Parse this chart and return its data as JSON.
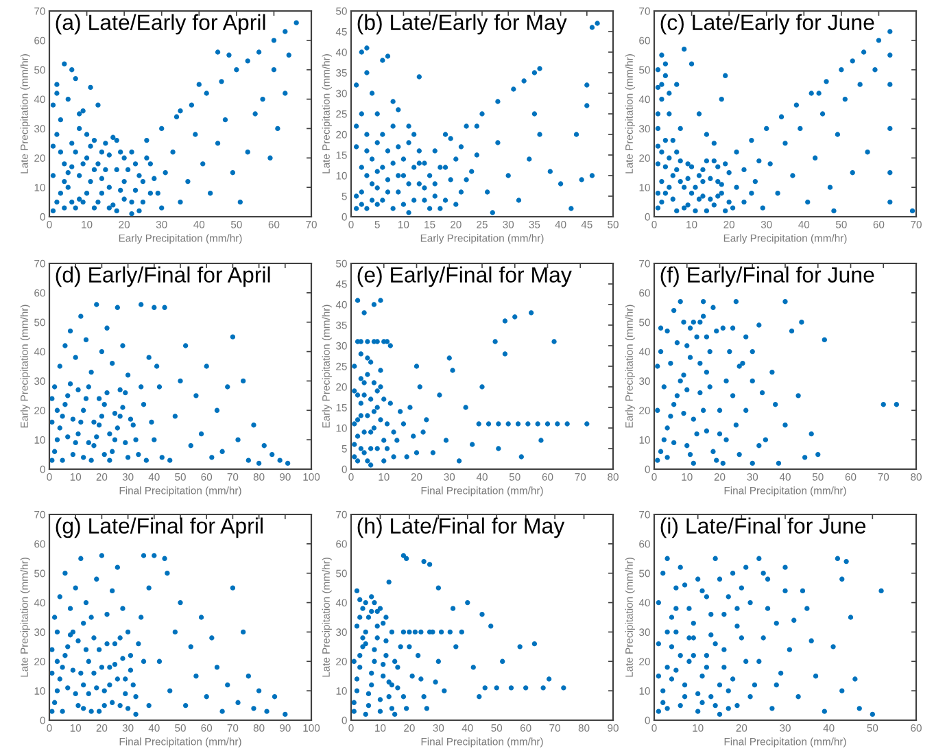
{
  "chart_data": [
    {
      "type": "scatter",
      "title": "(a) Late/Early for April",
      "xlabel": "Early Precipitation (mm/hr)",
      "ylabel": "Late Precipitation (mm/hr)",
      "xlim": [
        0,
        70
      ],
      "ylim": [
        0,
        70
      ],
      "xticks": [
        0,
        10,
        20,
        30,
        40,
        50,
        60,
        70
      ],
      "yticks": [
        0,
        10,
        20,
        30,
        40,
        50,
        60,
        70
      ],
      "marker": "circle",
      "color": "#0072bd",
      "x": [
        1,
        3,
        5,
        7,
        2,
        9,
        11,
        13,
        15,
        4,
        8,
        12,
        16,
        18,
        19,
        14,
        6,
        10,
        17,
        20,
        1,
        2,
        3,
        5,
        4,
        7,
        9,
        11,
        13,
        6,
        8,
        2,
        22,
        26,
        30,
        34,
        38,
        42,
        46,
        50,
        53,
        56,
        60,
        63,
        66,
        22,
        25,
        27,
        24,
        29,
        31,
        33,
        35,
        37,
        39,
        41,
        43,
        45,
        47,
        49,
        51,
        53,
        55,
        57,
        59,
        61,
        63,
        64,
        60,
        45,
        48,
        40,
        35,
        30,
        28,
        2,
        4,
        6,
        8,
        10,
        12,
        14,
        16,
        18,
        20,
        3,
        5,
        7,
        9,
        11,
        13,
        15,
        17,
        19,
        1,
        21,
        23,
        25,
        26,
        22,
        24,
        1,
        6,
        10,
        14,
        18,
        12,
        8,
        16,
        20,
        4,
        27,
        23
      ],
      "values": [
        2,
        8,
        15,
        22,
        28,
        5,
        12,
        18,
        25,
        12,
        30,
        3,
        10,
        16,
        22,
        8,
        5,
        20,
        4,
        12,
        38,
        42,
        33,
        40,
        52,
        47,
        36,
        44,
        38,
        50,
        35,
        45,
        22,
        26,
        30,
        34,
        38,
        42,
        46,
        50,
        53,
        56,
        60,
        63,
        66,
        5,
        12,
        18,
        2,
        8,
        15,
        22,
        5,
        12,
        28,
        18,
        8,
        25,
        33,
        15,
        5,
        22,
        35,
        40,
        20,
        30,
        42,
        55,
        50,
        56,
        55,
        45,
        36,
        3,
        13,
        5,
        18,
        25,
        14,
        8,
        26,
        13,
        21,
        2,
        6,
        22,
        10,
        3,
        18,
        24,
        5,
        16,
        27,
        9,
        14,
        16,
        9,
        5,
        20,
        1,
        14,
        24,
        17,
        28,
        22,
        26,
        16,
        6,
        3,
        20,
        3,
        8,
        18
      ]
    },
    {
      "type": "scatter",
      "title": "(b) Late/Early for May",
      "xlabel": "Early Precipitation (mm/hr)",
      "ylabel": "Late Precipitation (mm/hr)",
      "xlim": [
        0,
        50
      ],
      "ylim": [
        0,
        50
      ],
      "xticks": [
        0,
        5,
        10,
        15,
        20,
        25,
        30,
        35,
        40,
        45,
        50
      ],
      "yticks": [
        0,
        5,
        10,
        15,
        20,
        25,
        30,
        35,
        40,
        45,
        50
      ],
      "marker": "circle",
      "color": "#0072bd",
      "x": [
        1,
        2,
        3,
        4,
        5,
        1,
        2,
        6,
        7,
        8,
        9,
        10,
        11,
        12,
        13,
        3,
        5,
        9,
        14,
        15,
        2,
        3,
        7,
        6,
        13,
        1,
        4,
        8,
        5,
        9,
        3,
        11,
        10,
        13,
        16,
        19,
        22,
        25,
        28,
        31,
        33,
        35,
        36,
        46,
        47,
        16,
        18,
        20,
        22,
        24,
        26,
        28,
        30,
        32,
        34,
        36,
        38,
        40,
        42,
        43,
        45,
        44,
        46,
        45,
        35,
        27,
        24,
        18,
        21,
        1,
        2,
        3,
        4,
        5,
        6,
        7,
        8,
        9,
        10,
        11,
        12,
        13,
        14,
        15,
        16,
        17,
        18,
        19,
        20,
        1,
        3,
        6,
        8,
        2,
        4,
        7,
        11,
        14,
        17,
        21,
        23,
        12,
        5
      ],
      "values": [
        2,
        6,
        10,
        14,
        18,
        22,
        25,
        4,
        9,
        13,
        17,
        3,
        8,
        12,
        16,
        2,
        7,
        6,
        4,
        10,
        40,
        41,
        39,
        38,
        34,
        32,
        30,
        28,
        25,
        26,
        35,
        22,
        10,
        13,
        16,
        19,
        22,
        25,
        28,
        31,
        33,
        35,
        36,
        46,
        47,
        5,
        12,
        3,
        9,
        15,
        6,
        18,
        10,
        4,
        14,
        20,
        11,
        8,
        2,
        20,
        27,
        9,
        10,
        32,
        25,
        1,
        22,
        20,
        17,
        5,
        12,
        16,
        8,
        3,
        12,
        16,
        2,
        10,
        14,
        18,
        4,
        8,
        13,
        2,
        8,
        12,
        4,
        9,
        14,
        17,
        20,
        20,
        22,
        3,
        4,
        6,
        1,
        7,
        2,
        6,
        11,
        20,
        11
      ]
    },
    {
      "type": "scatter",
      "title": "(c) Late/Early for June",
      "xlabel": "Early Precipitation (mm/hr)",
      "ylabel": "Late Precipitation (mm/hr)",
      "xlim": [
        0,
        70
      ],
      "ylim": [
        0,
        70
      ],
      "xticks": [
        0,
        10,
        20,
        30,
        40,
        50,
        60,
        70
      ],
      "yticks": [
        0,
        10,
        20,
        30,
        40,
        50,
        60,
        70
      ],
      "marker": "circle",
      "color": "#0072bd",
      "x": [
        1,
        3,
        5,
        7,
        9,
        11,
        13,
        15,
        17,
        19,
        2,
        4,
        6,
        10,
        14,
        18,
        20,
        8,
        12,
        16,
        1,
        2,
        1,
        3,
        4,
        2,
        5,
        6,
        8,
        10,
        12,
        14,
        16,
        18,
        19,
        7,
        22,
        26,
        30,
        34,
        38,
        42,
        46,
        50,
        53,
        56,
        60,
        24,
        27,
        29,
        31,
        33,
        35,
        37,
        39,
        41,
        43,
        45,
        47,
        49,
        51,
        53,
        55,
        57,
        59,
        48,
        44,
        63,
        63,
        63,
        63,
        63,
        63,
        69,
        2,
        4,
        6,
        8,
        10,
        12,
        14,
        16,
        18,
        20,
        3,
        5,
        7,
        9,
        11,
        13,
        15,
        17,
        19,
        1,
        1,
        2,
        3,
        1,
        2,
        4,
        1,
        6,
        9,
        13,
        17,
        22,
        24,
        21,
        26,
        28,
        1,
        3
      ],
      "values": [
        3,
        8,
        14,
        19,
        4,
        10,
        16,
        6,
        12,
        18,
        12,
        20,
        2,
        17,
        2,
        8,
        15,
        10,
        6,
        19,
        30,
        40,
        50,
        48,
        35,
        55,
        26,
        45,
        57,
        52,
        35,
        28,
        25,
        40,
        48,
        30,
        22,
        26,
        30,
        34,
        38,
        42,
        46,
        50,
        53,
        56,
        60,
        5,
        12,
        3,
        18,
        8,
        25,
        14,
        30,
        5,
        20,
        35,
        10,
        28,
        40,
        15,
        45,
        22,
        50,
        2,
        42,
        5,
        15,
        30,
        45,
        55,
        63,
        2,
        5,
        10,
        16,
        3,
        8,
        14,
        19,
        4,
        11,
        5,
        17,
        6,
        12,
        18,
        2,
        7,
        13,
        17,
        2,
        8,
        18,
        22,
        26,
        35,
        45,
        42,
        24,
        22,
        13,
        12,
        7,
        10,
        16,
        3,
        8,
        19,
        44,
        52
      ]
    },
    {
      "type": "scatter",
      "title": "(d) Early/Final for April",
      "xlabel": "Final Precipitation (mm/hr)",
      "ylabel": "Early Precipitation (mm/hr)",
      "xlim": [
        0,
        100
      ],
      "ylim": [
        0,
        70
      ],
      "xticks": [
        0,
        10,
        20,
        30,
        40,
        50,
        60,
        70,
        80,
        90,
        100
      ],
      "yticks": [
        0,
        10,
        20,
        30,
        40,
        50,
        60,
        70
      ],
      "marker": "circle",
      "color": "#0072bd",
      "x": [
        1,
        3,
        5,
        7,
        9,
        11,
        13,
        15,
        17,
        19,
        21,
        23,
        25,
        27,
        29,
        2,
        4,
        6,
        8,
        10,
        12,
        14,
        16,
        18,
        20,
        22,
        24,
        26,
        28,
        30,
        32,
        34,
        36,
        38,
        40,
        42,
        44,
        46,
        48,
        50,
        52,
        54,
        56,
        58,
        60,
        62,
        64,
        66,
        68,
        70,
        72,
        74,
        76,
        78,
        80,
        82,
        85,
        88,
        91,
        35,
        40,
        2,
        4,
        6,
        8,
        10,
        12,
        14,
        16,
        18,
        20,
        22,
        24,
        26,
        28,
        30,
        3,
        5,
        7,
        9,
        11,
        13,
        15,
        17,
        19,
        21,
        23,
        25,
        27,
        29,
        31,
        1,
        1,
        33,
        35,
        37,
        39,
        41,
        43
      ],
      "values": [
        3,
        10,
        18,
        25,
        5,
        12,
        20,
        28,
        8,
        15,
        22,
        3,
        10,
        18,
        26,
        28,
        35,
        42,
        47,
        38,
        52,
        44,
        33,
        56,
        40,
        48,
        36,
        55,
        42,
        32,
        15,
        5,
        22,
        38,
        10,
        28,
        55,
        3,
        18,
        30,
        42,
        8,
        25,
        12,
        35,
        4,
        20,
        6,
        28,
        45,
        10,
        30,
        3,
        15,
        2,
        8,
        5,
        3,
        2,
        56,
        55,
        6,
        14,
        22,
        29,
        9,
        16,
        24,
        3,
        11,
        18,
        26,
        6,
        14,
        21,
        4,
        20,
        3,
        11,
        17,
        27,
        4,
        9,
        16,
        24,
        5,
        12,
        19,
        27,
        9,
        17,
        16,
        24,
        10,
        28,
        3,
        16,
        35,
        4
      ]
    },
    {
      "type": "scatter",
      "title": "(e) Early/Final for May",
      "xlabel": "Final Precipitation (mm/hr)",
      "ylabel": "Early Precipitation (mm/hr)",
      "xlim": [
        0,
        80
      ],
      "ylim": [
        0,
        50
      ],
      "xticks": [
        0,
        10,
        20,
        30,
        40,
        50,
        60,
        70,
        80
      ],
      "yticks": [
        0,
        5,
        10,
        15,
        20,
        25,
        30,
        35,
        40,
        45,
        50
      ],
      "marker": "circle",
      "color": "#0072bd",
      "x": [
        1,
        2,
        3,
        4,
        5,
        6,
        7,
        8,
        9,
        10,
        1,
        3,
        2,
        5,
        8,
        10,
        12,
        4,
        7,
        2,
        9,
        11,
        13,
        15,
        17,
        19,
        21,
        23,
        25,
        27,
        29,
        31,
        33,
        35,
        37,
        39,
        42,
        45,
        48,
        51,
        54,
        57,
        60,
        63,
        66,
        72,
        47,
        50,
        55,
        44,
        47,
        62,
        40,
        45,
        52,
        58,
        30,
        20,
        1,
        2,
        3,
        4,
        5,
        6,
        7,
        8,
        9,
        10,
        1,
        2,
        3,
        4,
        5,
        6,
        7,
        8,
        9,
        10,
        1,
        2,
        3,
        5,
        6,
        11,
        12,
        13,
        14,
        16,
        18,
        20,
        22,
        3,
        7,
        11,
        6,
        4
      ],
      "values": [
        3,
        8,
        13,
        18,
        23,
        5,
        10,
        15,
        20,
        2,
        25,
        28,
        31,
        31,
        31,
        31,
        30,
        38,
        40,
        41,
        41,
        5,
        9,
        14,
        3,
        8,
        20,
        12,
        4,
        18,
        7,
        24,
        2,
        15,
        6,
        11,
        11,
        11,
        11,
        11,
        11,
        11,
        11,
        11,
        11,
        11,
        36,
        37,
        38,
        31,
        28,
        31,
        20,
        5,
        3,
        7,
        27,
        25,
        6,
        12,
        16,
        21,
        2,
        9,
        14,
        19,
        24,
        7,
        11,
        18,
        22,
        4,
        13,
        17,
        21,
        5,
        12,
        17,
        19,
        2,
        5,
        27,
        26,
        11,
        16,
        3,
        7,
        11,
        15,
        4,
        9,
        31,
        31,
        31,
        1,
        9
      ]
    },
    {
      "type": "scatter",
      "title": "(f) Early/Final for June",
      "xlabel": "Final Precipitation (mm/hr)",
      "ylabel": "Early Precipitation (mm/hr)",
      "xlim": [
        0,
        80
      ],
      "ylim": [
        0,
        70
      ],
      "xticks": [
        0,
        10,
        20,
        30,
        40,
        50,
        60,
        70,
        80
      ],
      "yticks": [
        0,
        10,
        20,
        30,
        40,
        50,
        60,
        70
      ],
      "marker": "circle",
      "color": "#0072bd",
      "x": [
        1,
        3,
        5,
        7,
        9,
        11,
        13,
        15,
        17,
        19,
        2,
        4,
        6,
        8,
        10,
        12,
        14,
        16,
        18,
        20,
        22,
        24,
        26,
        28,
        30,
        32,
        34,
        36,
        38,
        40,
        42,
        44,
        46,
        48,
        50,
        52,
        70,
        74,
        45,
        40,
        25,
        15,
        33,
        27,
        21,
        11,
        30,
        37,
        2,
        4,
        6,
        8,
        10,
        12,
        14,
        16,
        18,
        20,
        3,
        5,
        7,
        9,
        11,
        13,
        15,
        17,
        19,
        1,
        1,
        2,
        22,
        24,
        26,
        28,
        30,
        32,
        23,
        21,
        25,
        12,
        4,
        9,
        16,
        6,
        10,
        14
      ],
      "values": [
        3,
        10,
        18,
        25,
        32,
        5,
        12,
        20,
        28,
        3,
        40,
        47,
        54,
        57,
        42,
        50,
        36,
        45,
        55,
        12,
        30,
        48,
        5,
        20,
        40,
        49,
        10,
        33,
        2,
        15,
        47,
        25,
        4,
        12,
        5,
        44,
        22,
        22,
        50,
        57,
        57,
        57,
        26,
        36,
        48,
        48,
        2,
        22,
        6,
        14,
        22,
        30,
        8,
        17,
        26,
        33,
        6,
        20,
        28,
        36,
        43,
        50,
        38,
        45,
        52,
        40,
        47,
        20,
        35,
        48,
        10,
        25,
        35,
        45,
        30,
        8,
        40,
        2,
        15,
        2,
        4,
        19,
        13,
        9,
        27,
        50
      ]
    },
    {
      "type": "scatter",
      "title": "(g) Late/Final for April",
      "xlabel": "Final Precipitation (mm/hr)",
      "ylabel": "Late Precipitation (mm/hr)",
      "xlim": [
        0,
        100
      ],
      "ylim": [
        0,
        70
      ],
      "xticks": [
        0,
        10,
        20,
        30,
        40,
        50,
        60,
        70,
        80,
        90,
        100
      ],
      "yticks": [
        0,
        10,
        20,
        30,
        40,
        50,
        60,
        70
      ],
      "marker": "circle",
      "color": "#0072bd",
      "x": [
        1,
        3,
        5,
        7,
        9,
        11,
        13,
        15,
        17,
        19,
        21,
        23,
        25,
        27,
        29,
        31,
        33,
        2,
        4,
        6,
        8,
        10,
        12,
        14,
        16,
        18,
        20,
        22,
        24,
        26,
        28,
        30,
        35,
        38,
        40,
        42,
        44,
        46,
        48,
        50,
        52,
        54,
        56,
        58,
        60,
        62,
        64,
        66,
        68,
        70,
        72,
        74,
        76,
        78,
        80,
        83,
        86,
        90,
        36,
        45,
        33,
        2,
        4,
        6,
        8,
        10,
        12,
        14,
        16,
        18,
        20,
        22,
        24,
        26,
        28,
        30,
        32,
        34,
        3,
        5,
        7,
        9,
        11,
        13,
        15,
        17,
        19,
        21,
        23,
        25,
        27,
        29,
        31,
        1,
        1,
        36,
        38,
        3,
        13
      ],
      "values": [
        3,
        10,
        18,
        25,
        30,
        5,
        12,
        20,
        28,
        3,
        10,
        18,
        26,
        5,
        14,
        22,
        8,
        35,
        42,
        50,
        38,
        45,
        55,
        40,
        35,
        48,
        56,
        36,
        44,
        52,
        38,
        30,
        35,
        45,
        56,
        20,
        55,
        10,
        30,
        40,
        5,
        25,
        15,
        35,
        8,
        28,
        18,
        3,
        12,
        45,
        6,
        30,
        15,
        4,
        10,
        3,
        8,
        2,
        56,
        50,
        2,
        6,
        14,
        22,
        29,
        9,
        16,
        24,
        3,
        11,
        18,
        26,
        6,
        14,
        21,
        4,
        12,
        26,
        20,
        3,
        11,
        17,
        27,
        4,
        9,
        16,
        24,
        5,
        12,
        19,
        28,
        9,
        17,
        16,
        24,
        20,
        5,
        30,
        33
      ]
    },
    {
      "type": "scatter",
      "title": "(h) Late/Final for May",
      "xlabel": "Final Precipitation (mm/hr)",
      "ylabel": "Late Precipitation (mm/hr)",
      "xlim": [
        0,
        90
      ],
      "ylim": [
        0,
        70
      ],
      "xticks": [
        0,
        10,
        20,
        30,
        40,
        50,
        60,
        70,
        80,
        90
      ],
      "yticks": [
        0,
        10,
        20,
        30,
        40,
        50,
        60,
        70
      ],
      "marker": "circle",
      "color": "#0072bd",
      "x": [
        1,
        2,
        3,
        4,
        5,
        6,
        7,
        8,
        9,
        10,
        11,
        12,
        13,
        14,
        15,
        3,
        5,
        7,
        9,
        11,
        2,
        13,
        18,
        19,
        25,
        27,
        16,
        18,
        20,
        22,
        24,
        26,
        28,
        30,
        32,
        34,
        36,
        38,
        40,
        42,
        44,
        46,
        48,
        50,
        52,
        55,
        58,
        60,
        63,
        66,
        68,
        73,
        30,
        35,
        45,
        1,
        2,
        3,
        4,
        5,
        6,
        7,
        8,
        9,
        10,
        11,
        12,
        13,
        14,
        15,
        1,
        2,
        4,
        6,
        8,
        10,
        12,
        3,
        7,
        5,
        16,
        17,
        19,
        21,
        23,
        25,
        27,
        29,
        18,
        20,
        24,
        31,
        14
      ],
      "values": [
        3,
        10,
        18,
        25,
        30,
        5,
        12,
        20,
        28,
        3,
        15,
        22,
        8,
        30,
        2,
        35,
        40,
        42,
        37,
        33,
        44,
        47,
        56,
        55,
        54,
        53,
        18,
        8,
        25,
        30,
        14,
        4,
        30,
        20,
        10,
        30,
        25,
        30,
        40,
        18,
        8,
        11,
        32,
        11,
        20,
        11,
        25,
        11,
        26,
        11,
        14,
        11,
        45,
        38,
        36,
        6,
        14,
        22,
        28,
        2,
        9,
        16,
        24,
        32,
        7,
        19,
        27,
        13,
        4,
        20,
        20,
        32,
        38,
        35,
        40,
        38,
        35,
        41,
        37,
        26,
        11,
        25,
        4,
        15,
        22,
        8,
        30,
        13,
        30,
        30,
        30,
        30,
        12
      ]
    },
    {
      "type": "scatter",
      "title": "(i) Late/Final for June",
      "xlabel": "Final Precipitation (mm/hr)",
      "ylabel": "Late Precipitation (mm/hr)",
      "xlim": [
        0,
        60
      ],
      "ylim": [
        0,
        70
      ],
      "xticks": [
        0,
        10,
        20,
        30,
        40,
        50,
        60
      ],
      "yticks": [
        0,
        10,
        20,
        30,
        40,
        50,
        60,
        70
      ],
      "marker": "circle",
      "color": "#0072bd",
      "x": [
        1,
        2,
        3,
        4,
        5,
        6,
        7,
        8,
        9,
        10,
        11,
        12,
        13,
        14,
        15,
        16,
        17,
        1,
        2,
        3,
        4,
        5,
        6,
        8,
        10,
        12,
        14,
        16,
        18,
        20,
        22,
        24,
        26,
        28,
        30,
        19,
        21,
        23,
        25,
        27,
        29,
        31,
        33,
        35,
        37,
        39,
        41,
        43,
        45,
        47,
        42,
        44,
        43,
        52,
        50,
        46,
        34,
        36,
        2,
        4,
        6,
        8,
        10,
        12,
        14,
        16,
        18,
        20,
        3,
        5,
        7,
        9,
        11,
        13,
        15,
        17,
        19,
        21,
        1,
        1,
        3,
        5,
        7,
        9,
        11,
        13,
        15,
        17,
        22,
        24,
        26,
        28,
        30,
        32,
        19,
        25
      ],
      "values": [
        3,
        10,
        18,
        25,
        30,
        5,
        12,
        20,
        28,
        3,
        15,
        22,
        8,
        26,
        2,
        18,
        10,
        40,
        50,
        55,
        35,
        45,
        52,
        38,
        48,
        42,
        55,
        36,
        50,
        45,
        40,
        55,
        48,
        33,
        52,
        5,
        20,
        12,
        28,
        4,
        16,
        24,
        8,
        38,
        15,
        3,
        25,
        10,
        35,
        4,
        55,
        54,
        48,
        44,
        2,
        14,
        44,
        27,
        6,
        14,
        22,
        28,
        9,
        18,
        5,
        24,
        14,
        28,
        30,
        38,
        46,
        33,
        44,
        36,
        48,
        42,
        32,
        52,
        15,
        26,
        4,
        17,
        8,
        22,
        6,
        29,
        12,
        4,
        8,
        20,
        38,
        12,
        44,
        34,
        38,
        50
      ]
    }
  ]
}
